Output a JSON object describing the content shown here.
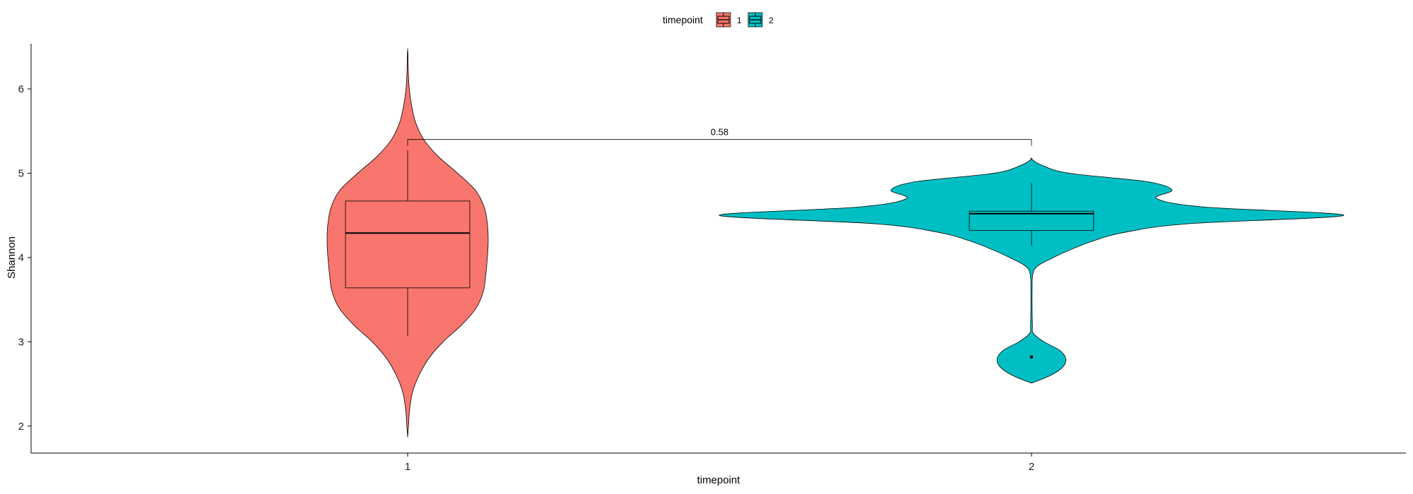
{
  "chart_data": {
    "type": "violin",
    "xlabel": "timepoint",
    "ylabel": "Shannon",
    "ylim": [
      1.68,
      6.72
    ],
    "y_ticks": [
      2,
      3,
      4,
      5,
      6
    ],
    "categories": [
      "1",
      "2"
    ],
    "legend": {
      "title": "timepoint",
      "position": "top",
      "entries": [
        {
          "label": "1",
          "color": "#F8766D"
        },
        {
          "label": "2",
          "color": "#00BFC4"
        }
      ]
    },
    "series": [
      {
        "group": "1",
        "color": "#F8766D",
        "box": {
          "q1": 3.64,
          "median": 4.29,
          "q3": 4.67,
          "whisker_low": 3.07,
          "whisker_high": 5.27
        },
        "outliers": [],
        "density": [
          [
            1.87,
            0.0
          ],
          [
            2.0,
            0.01
          ],
          [
            2.2,
            0.025
          ],
          [
            2.4,
            0.06
          ],
          [
            2.6,
            0.14
          ],
          [
            2.8,
            0.26
          ],
          [
            3.0,
            0.44
          ],
          [
            3.2,
            0.67
          ],
          [
            3.4,
            0.85
          ],
          [
            3.6,
            0.94
          ],
          [
            3.8,
            0.97
          ],
          [
            4.0,
            0.99
          ],
          [
            4.2,
            1.0
          ],
          [
            4.4,
            0.99
          ],
          [
            4.6,
            0.95
          ],
          [
            4.8,
            0.84
          ],
          [
            5.0,
            0.62
          ],
          [
            5.2,
            0.38
          ],
          [
            5.4,
            0.2
          ],
          [
            5.6,
            0.1
          ],
          [
            5.8,
            0.05
          ],
          [
            6.0,
            0.02
          ],
          [
            6.2,
            0.008
          ],
          [
            6.4,
            0.004
          ],
          [
            6.47,
            0.0
          ]
        ]
      },
      {
        "group": "2",
        "color": "#00BFC4",
        "box": {
          "q1": 4.32,
          "median": 4.52,
          "q3": 4.55,
          "whisker_low": 4.14,
          "whisker_high": 4.88
        },
        "outliers": [
          2.82
        ],
        "density": [
          [
            2.51,
            0.0
          ],
          [
            2.6,
            0.06
          ],
          [
            2.7,
            0.1
          ],
          [
            2.8,
            0.11
          ],
          [
            2.9,
            0.09
          ],
          [
            3.0,
            0.04
          ],
          [
            3.1,
            0.006
          ],
          [
            3.2,
            0.003
          ],
          [
            3.4,
            0.002
          ],
          [
            3.6,
            0.002
          ],
          [
            3.8,
            0.004
          ],
          [
            3.9,
            0.02
          ],
          [
            4.0,
            0.07
          ],
          [
            4.1,
            0.13
          ],
          [
            4.2,
            0.2
          ],
          [
            4.3,
            0.3
          ],
          [
            4.4,
            0.5
          ],
          [
            4.5,
            1.0
          ],
          [
            4.6,
            0.55
          ],
          [
            4.7,
            0.4
          ],
          [
            4.8,
            0.45
          ],
          [
            4.9,
            0.37
          ],
          [
            5.0,
            0.12
          ],
          [
            5.1,
            0.03
          ],
          [
            5.17,
            0.0
          ]
        ]
      }
    ],
    "comparisons": [
      {
        "groups": [
          "1",
          "2"
        ],
        "label": "0.58",
        "y": 5.4
      }
    ],
    "grid": false
  }
}
